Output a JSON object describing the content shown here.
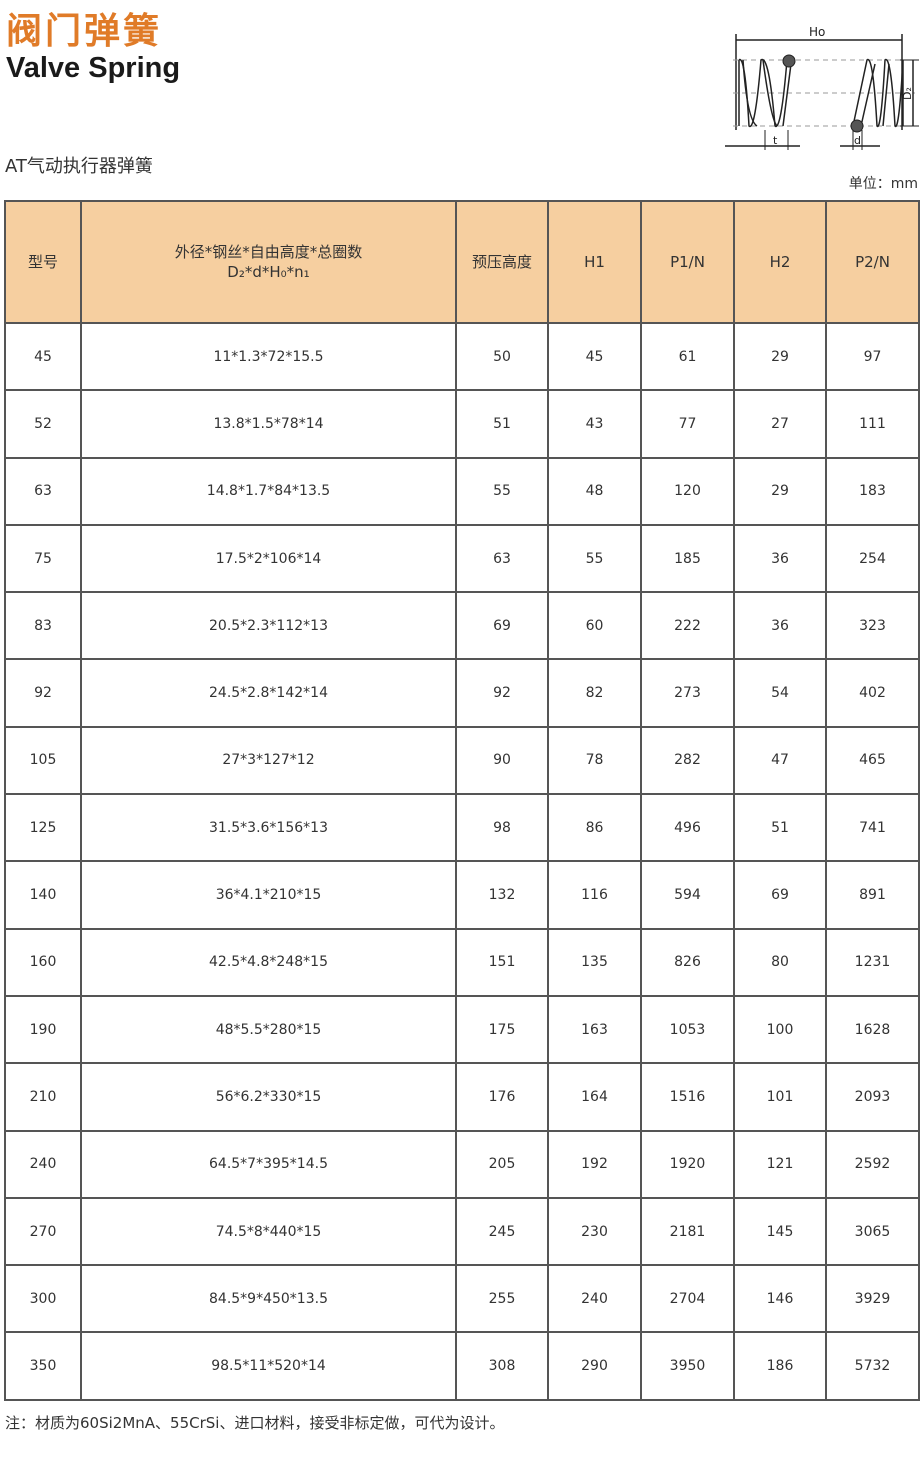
{
  "header": {
    "title_cn": "阀门弹簧",
    "title_en": "Valve Spring",
    "subtitle": "AT气动执行器弹簧",
    "unit": "单位：mm"
  },
  "diagram": {
    "label_h0": "Ho",
    "label_d2": "D₂",
    "label_t": "t",
    "label_d": "d"
  },
  "table": {
    "headers": [
      "型号",
      "外径*钢丝*自由高度*总圈数",
      "预压高度",
      "H1",
      "P1/N",
      "H2",
      "P2/N"
    ],
    "header_formula": "D₂*d*H₀*n₁",
    "rows": [
      [
        "45",
        "11*1.3*72*15.5",
        "50",
        "45",
        "61",
        "29",
        "97"
      ],
      [
        "52",
        "13.8*1.5*78*14",
        "51",
        "43",
        "77",
        "27",
        "111"
      ],
      [
        "63",
        "14.8*1.7*84*13.5",
        "55",
        "48",
        "120",
        "29",
        "183"
      ],
      [
        "75",
        "17.5*2*106*14",
        "63",
        "55",
        "185",
        "36",
        "254"
      ],
      [
        "83",
        "20.5*2.3*112*13",
        "69",
        "60",
        "222",
        "36",
        "323"
      ],
      [
        "92",
        "24.5*2.8*142*14",
        "92",
        "82",
        "273",
        "54",
        "402"
      ],
      [
        "105",
        "27*3*127*12",
        "90",
        "78",
        "282",
        "47",
        "465"
      ],
      [
        "125",
        "31.5*3.6*156*13",
        "98",
        "86",
        "496",
        "51",
        "741"
      ],
      [
        "140",
        "36*4.1*210*15",
        "132",
        "116",
        "594",
        "69",
        "891"
      ],
      [
        "160",
        "42.5*4.8*248*15",
        "151",
        "135",
        "826",
        "80",
        "1231"
      ],
      [
        "190",
        "48*5.5*280*15",
        "175",
        "163",
        "1053",
        "100",
        "1628"
      ],
      [
        "210",
        "56*6.2*330*15",
        "176",
        "164",
        "1516",
        "101",
        "2093"
      ],
      [
        "240",
        "64.5*7*395*14.5",
        "205",
        "192",
        "1920",
        "121",
        "2592"
      ],
      [
        "270",
        "74.5*8*440*15",
        "245",
        "230",
        "2181",
        "145",
        "3065"
      ],
      [
        "300",
        "84.5*9*450*13.5",
        "255",
        "240",
        "2704",
        "146",
        "3929"
      ],
      [
        "350",
        "98.5*11*520*14",
        "308",
        "290",
        "3950",
        "186",
        "5732"
      ]
    ]
  },
  "note": "注：材质为60Si2MnA、55CrSi、进口材料，接受非标定做，可代为设计。",
  "colors": {
    "accent": "#e07b28",
    "header_bg": "#f6cfa0"
  }
}
